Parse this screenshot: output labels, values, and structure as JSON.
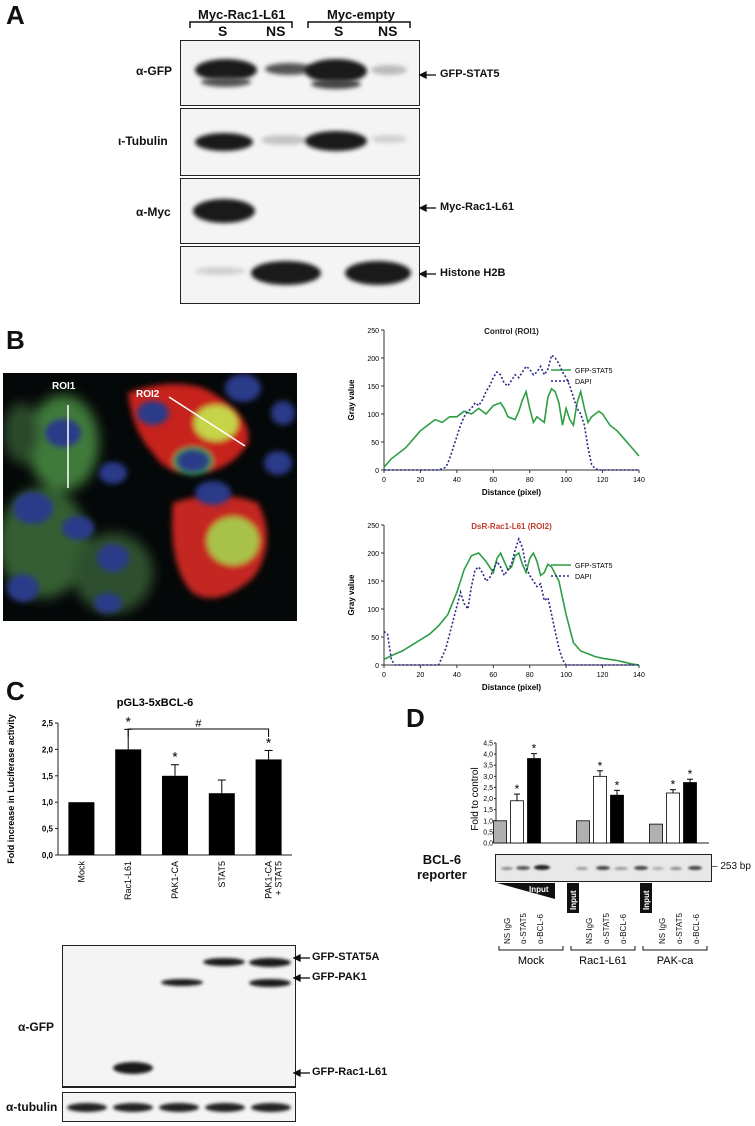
{
  "panelA": {
    "letter": "A",
    "groups": [
      "Myc-Rac1-L61",
      "Myc-empty"
    ],
    "lanes": [
      "S",
      "NS",
      "S",
      "NS"
    ],
    "rows": [
      "α-GFP",
      "ι-Tubulin",
      "α-Myc",
      ""
    ],
    "right_labels": [
      "GFP-STAT5",
      "Myc-Rac1-L61",
      "Histone H2B"
    ]
  },
  "panelB": {
    "letter": "B",
    "roi_labels": [
      "ROI1",
      "ROI2"
    ],
    "charts_meta": [
      {
        "title": "Control (ROI1)",
        "title_color": "#222222"
      },
      {
        "title": "DsR-Rac1-L61 (ROI2)",
        "title_color": "#c0392b"
      }
    ]
  },
  "panelC": {
    "letter": "C",
    "categories": [
      "Mock",
      "Rac1-L61",
      "PAK1-CA",
      "STAT5",
      "PAK1-CA\n+ STAT5"
    ],
    "blot_labels": [
      "GFP-STAT5A",
      "GFP-PAK1",
      "GFP-Rac1-L61"
    ],
    "row_labels": [
      "α-GFP",
      "α-tubulin"
    ]
  },
  "panelD": {
    "letter": "D",
    "reporter_label": "BCL-6\nreporter",
    "bp_label": "– 253 bp",
    "input_label": "Input",
    "lane_labels": [
      "NS IgG",
      "α-STAT5",
      "α-BCL-6"
    ],
    "groups": [
      "Mock",
      "Rac1-L61",
      "PAK-ca"
    ]
  },
  "chart_data": [
    {
      "type": "line",
      "title": "Control (ROI1)",
      "xlabel": "Distance (pixel)",
      "ylabel": "Gray value",
      "xlim": [
        0,
        140
      ],
      "ylim": [
        0,
        250
      ],
      "xticks": [
        0,
        20,
        40,
        60,
        80,
        100,
        120,
        140
      ],
      "yticks": [
        0,
        50,
        100,
        150,
        200,
        250
      ],
      "series": [
        {
          "name": "GFP-STAT5",
          "color": "#2e9e44",
          "style": "solid",
          "x": [
            0,
            4,
            8,
            12,
            16,
            20,
            24,
            28,
            32,
            36,
            40,
            44,
            48,
            52,
            56,
            60,
            64,
            66,
            68,
            72,
            74,
            76,
            78,
            80,
            82,
            84,
            86,
            88,
            90,
            92,
            94,
            96,
            98,
            100,
            102,
            104,
            106,
            108,
            110,
            112,
            114,
            116,
            118,
            120,
            124,
            128,
            132,
            136,
            140
          ],
          "y": [
            5,
            20,
            30,
            40,
            55,
            70,
            80,
            90,
            85,
            95,
            95,
            105,
            100,
            110,
            100,
            115,
            120,
            110,
            95,
            90,
            105,
            125,
            140,
            110,
            85,
            95,
            90,
            85,
            130,
            145,
            140,
            120,
            80,
            110,
            90,
            80,
            120,
            140,
            110,
            85,
            95,
            100,
            105,
            100,
            80,
            70,
            55,
            40,
            25
          ]
        },
        {
          "name": "DAPI",
          "color": "#2a2a8a",
          "style": "dotted",
          "x": [
            0,
            30,
            34,
            36,
            38,
            40,
            42,
            44,
            46,
            48,
            50,
            52,
            54,
            56,
            58,
            60,
            62,
            64,
            66,
            68,
            70,
            72,
            74,
            76,
            78,
            80,
            82,
            84,
            86,
            88,
            90,
            92,
            94,
            96,
            98,
            100,
            102,
            104,
            106,
            108,
            110,
            112,
            114,
            116,
            118,
            140
          ],
          "y": [
            0,
            0,
            5,
            20,
            40,
            60,
            80,
            95,
            105,
            110,
            120,
            115,
            125,
            140,
            150,
            165,
            175,
            170,
            155,
            150,
            160,
            170,
            165,
            175,
            185,
            180,
            170,
            175,
            185,
            170,
            180,
            205,
            200,
            190,
            175,
            165,
            150,
            130,
            110,
            100,
            80,
            40,
            10,
            2,
            0,
            0
          ]
        }
      ]
    },
    {
      "type": "line",
      "title": "DsR-Rac1-L61 (ROI2)",
      "xlabel": "Distance (pixel)",
      "ylabel": "Gray value",
      "xlim": [
        0,
        140
      ],
      "ylim": [
        0,
        250
      ],
      "xticks": [
        0,
        20,
        40,
        60,
        80,
        100,
        120,
        140
      ],
      "yticks": [
        0,
        50,
        100,
        150,
        200,
        250
      ],
      "series": [
        {
          "name": "GFP-STAT5",
          "color": "#2e9e44",
          "style": "solid",
          "x": [
            0,
            5,
            10,
            15,
            20,
            25,
            30,
            35,
            40,
            44,
            48,
            52,
            56,
            60,
            62,
            64,
            66,
            68,
            70,
            72,
            74,
            76,
            78,
            80,
            82,
            84,
            86,
            88,
            90,
            92,
            96,
            100,
            104,
            108,
            112,
            116,
            120,
            124,
            128,
            132,
            136,
            140
          ],
          "y": [
            10,
            18,
            25,
            35,
            45,
            55,
            70,
            90,
            130,
            170,
            195,
            200,
            185,
            165,
            190,
            200,
            185,
            170,
            175,
            195,
            200,
            180,
            165,
            190,
            200,
            185,
            160,
            165,
            180,
            175,
            150,
            90,
            40,
            25,
            20,
            15,
            12,
            10,
            8,
            5,
            2,
            0
          ]
        },
        {
          "name": "DAPI",
          "color": "#2a2a8a",
          "style": "dotted",
          "x": [
            0,
            2,
            4,
            6,
            10,
            20,
            30,
            34,
            38,
            42,
            44,
            46,
            48,
            50,
            52,
            54,
            56,
            58,
            60,
            62,
            64,
            66,
            68,
            70,
            72,
            74,
            76,
            78,
            80,
            82,
            84,
            86,
            88,
            90,
            92,
            94,
            96,
            98,
            100,
            102,
            140
          ],
          "y": [
            60,
            55,
            10,
            0,
            0,
            0,
            0,
            30,
            80,
            130,
            110,
            100,
            140,
            170,
            175,
            165,
            150,
            155,
            170,
            185,
            175,
            160,
            170,
            180,
            205,
            225,
            210,
            175,
            160,
            150,
            140,
            145,
            115,
            120,
            90,
            60,
            30,
            10,
            0,
            0,
            0
          ]
        }
      ]
    },
    {
      "type": "bar",
      "title": "pGL3-5xBCL-6",
      "ylabel": "Fold increase in Luciferase activity",
      "categories": [
        "Mock",
        "Rac1-L61",
        "PAK1-CA",
        "STAT5",
        "PAK1-CA + STAT5"
      ],
      "values": [
        1.0,
        2.0,
        1.5,
        1.17,
        1.81
      ],
      "errors": [
        0,
        0.38,
        0.21,
        0.25,
        0.17
      ],
      "significant": [
        false,
        true,
        true,
        false,
        true
      ],
      "ylim": [
        0,
        2.5
      ],
      "yticks": [
        "0,0",
        "0,5",
        "1,0",
        "1,5",
        "2,0",
        "2,5"
      ],
      "annotation": "#"
    },
    {
      "type": "bar",
      "ylabel": "Fold to control",
      "categories": [
        "Mock NS IgG",
        "Mock α-STAT5",
        "Mock α-BCL-6",
        "Rac1-L61 NS IgG",
        "Rac1-L61 α-STAT5",
        "Rac1-L61 α-BCL-6",
        "PAK-ca NS IgG",
        "PAK-ca α-STAT5",
        "PAK-ca α-BCL-6"
      ],
      "values": [
        1.0,
        1.9,
        3.8,
        1.0,
        3.0,
        2.15,
        0.85,
        2.25,
        2.72
      ],
      "errors": [
        0,
        0.3,
        0.22,
        0,
        0.25,
        0.22,
        0,
        0.15,
        0.15
      ],
      "significant": [
        false,
        true,
        true,
        false,
        true,
        true,
        false,
        true,
        true
      ],
      "fills": [
        "#b0b0b0",
        "#ffffff",
        "#000000",
        "#b0b0b0",
        "#ffffff",
        "#000000",
        "#b0b0b0",
        "#ffffff",
        "#000000"
      ],
      "ylim": [
        0,
        4.5
      ],
      "yticks": [
        "0,0",
        "0,5",
        "1,0",
        "1,5",
        "2,0",
        "2,5",
        "3,0",
        "3,5",
        "4,0",
        "4,5"
      ]
    }
  ]
}
